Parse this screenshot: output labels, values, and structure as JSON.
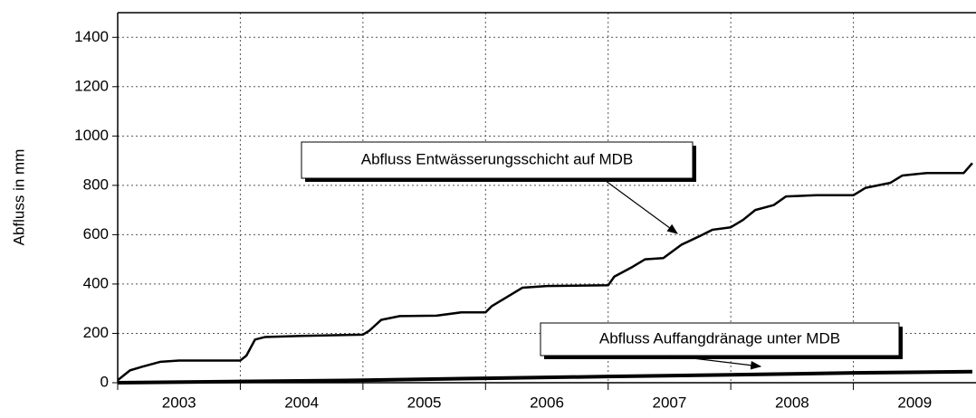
{
  "chart_data": {
    "type": "line",
    "y_label": "Abfluss in mm",
    "xlim": [
      2003,
      2010
    ],
    "ylim": [
      0,
      1500
    ],
    "xticks": [
      2003,
      2004,
      2005,
      2006,
      2007,
      2008,
      2009
    ],
    "xlabels": [
      {
        "value": 2003.5,
        "label": "2003"
      },
      {
        "value": 2004.5,
        "label": "2004"
      },
      {
        "value": 2005.5,
        "label": "2005"
      },
      {
        "value": 2006.5,
        "label": "2006"
      },
      {
        "value": 2007.5,
        "label": "2007"
      },
      {
        "value": 2008.5,
        "label": "2008"
      },
      {
        "value": 2009.5,
        "label": "2009"
      }
    ],
    "yticks": [
      0,
      200,
      400,
      600,
      800,
      1000,
      1200,
      1400
    ],
    "grid": true,
    "series": [
      {
        "name": "Abfluss Entwässerungsschicht auf MDB",
        "color": "#000000",
        "width": 2.5,
        "x": [
          2003.0,
          2003.1,
          2003.2,
          2003.35,
          2003.5,
          2004.0,
          2004.05,
          2004.12,
          2004.2,
          2004.5,
          2005.0,
          2005.05,
          2005.15,
          2005.3,
          2005.6,
          2005.8,
          2006.0,
          2006.05,
          2006.15,
          2006.3,
          2006.5,
          2007.0,
          2007.05,
          2007.2,
          2007.3,
          2007.45,
          2007.6,
          2007.75,
          2007.85,
          2008.0,
          2008.1,
          2008.2,
          2008.35,
          2008.45,
          2008.7,
          2009.0,
          2009.1,
          2009.3,
          2009.4,
          2009.6,
          2009.9,
          2009.97
        ],
        "values": [
          10,
          50,
          65,
          85,
          90,
          90,
          110,
          175,
          185,
          190,
          195,
          210,
          255,
          270,
          272,
          285,
          285,
          310,
          340,
          385,
          392,
          395,
          430,
          470,
          500,
          505,
          560,
          595,
          620,
          630,
          660,
          700,
          720,
          755,
          760,
          760,
          790,
          810,
          840,
          850,
          850,
          890
        ]
      },
      {
        "name": "Abfluss Auffangdränage unter MDB",
        "color": "#000000",
        "width": 4,
        "x": [
          2003.0,
          2004.0,
          2005.0,
          2006.0,
          2007.0,
          2008.0,
          2009.0,
          2009.97
        ],
        "values": [
          0,
          5,
          10,
          18,
          25,
          32,
          40,
          45
        ]
      }
    ]
  }
}
